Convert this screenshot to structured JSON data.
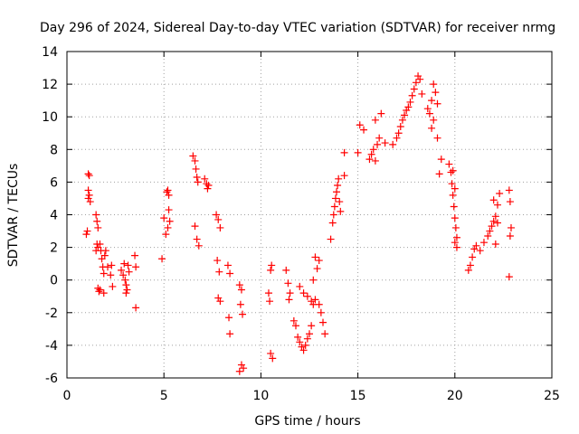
{
  "chart_data": {
    "type": "scatter",
    "title": "Day 296 of 2024, Sidereal Day-to-day VTEC variation (SDTVAR) for receiver nrmg",
    "xlabel": "GPS time / hours",
    "ylabel": "SDTVAR / TECUs",
    "xlim": [
      0,
      25
    ],
    "ylim": [
      -6,
      14
    ],
    "xticks": [
      0,
      5,
      10,
      15,
      20,
      25
    ],
    "yticks": [
      -6,
      -4,
      -2,
      0,
      2,
      4,
      6,
      8,
      10,
      12,
      14
    ],
    "grid": true,
    "marker": "plus",
    "color": "#ff0000",
    "series": [
      {
        "name": "SDTVAR",
        "x": [
          1.0,
          1.05,
          1.1,
          1.1,
          1.15,
          1.2,
          1.1,
          1.15,
          1.5,
          1.55,
          1.6,
          1.55,
          1.5,
          1.6,
          1.6,
          1.65,
          1.7,
          1.75,
          1.8,
          1.85,
          1.9,
          1.95,
          2.0,
          1.7,
          1.9,
          2.1,
          2.25,
          2.3,
          2.35,
          2.8,
          2.9,
          3.0,
          3.05,
          3.1,
          3.15,
          3.2,
          2.95,
          3.05,
          3.5,
          3.55,
          3.55,
          4.9,
          5.0,
          5.1,
          5.2,
          5.25,
          5.15,
          5.2,
          5.25,
          5.3,
          6.5,
          6.6,
          6.65,
          6.7,
          6.75,
          6.6,
          6.7,
          6.8,
          7.1,
          7.2,
          7.25,
          7.3,
          7.7,
          7.8,
          7.9,
          7.75,
          7.85,
          7.8,
          7.9,
          8.3,
          8.4,
          8.35,
          8.4,
          8.9,
          9.0,
          8.95,
          9.05,
          9.0,
          8.9,
          9.1,
          10.4,
          10.45,
          10.5,
          10.55,
          10.5,
          10.6,
          11.3,
          11.4,
          11.45,
          11.5,
          11.7,
          11.8,
          11.9,
          12.0,
          12.1,
          12.2,
          12.3,
          12.4,
          12.5,
          12.6,
          12.7,
          12.0,
          12.2,
          12.4,
          12.6,
          12.8,
          13.0,
          13.1,
          13.2,
          13.3,
          12.7,
          12.9,
          13.0,
          12.8,
          13.6,
          13.7,
          13.75,
          13.8,
          13.85,
          13.9,
          13.95,
          14.0,
          14.05,
          14.1,
          14.3,
          14.3,
          15.0,
          15.1,
          15.3,
          15.6,
          15.8,
          15.9,
          16.0,
          16.1,
          15.7,
          15.9,
          16.2,
          16.4,
          16.8,
          17.0,
          17.1,
          17.2,
          17.3,
          17.4,
          17.5,
          17.6,
          17.7,
          17.8,
          17.9,
          18.0,
          18.1,
          18.2,
          18.3,
          18.6,
          18.7,
          18.8,
          18.9,
          19.0,
          19.1,
          18.8,
          18.9,
          19.1,
          19.3,
          19.2,
          19.7,
          19.8,
          19.85,
          19.9,
          19.95,
          20.0,
          20.05,
          20.1,
          20.0,
          20.1,
          19.9,
          20.0,
          20.7,
          20.8,
          20.9,
          21.0,
          21.1,
          21.3,
          21.5,
          21.7,
          21.8,
          21.9,
          22.0,
          22.1,
          22.2,
          22.3,
          22.1,
          22.2,
          22.0,
          22.8,
          22.85,
          22.9,
          22.85,
          22.8
        ],
        "y": [
          2.8,
          3.0,
          5.0,
          5.5,
          5.2,
          4.8,
          6.5,
          6.4,
          4.0,
          3.6,
          3.2,
          2.2,
          1.8,
          2.0,
          -0.5,
          -0.7,
          2.2,
          1.8,
          1.3,
          0.8,
          0.4,
          1.5,
          1.8,
          -0.6,
          -0.8,
          0.8,
          0.3,
          0.9,
          -0.4,
          0.6,
          0.3,
          0.0,
          -0.3,
          -0.6,
          0.9,
          0.5,
          1.0,
          -0.8,
          1.5,
          0.8,
          -1.7,
          1.3,
          3.8,
          2.8,
          3.2,
          4.3,
          5.4,
          5.5,
          5.2,
          3.6,
          7.6,
          7.3,
          6.8,
          6.3,
          6.0,
          3.3,
          2.5,
          2.1,
          6.2,
          5.9,
          5.6,
          5.8,
          4.0,
          3.7,
          3.2,
          1.2,
          0.5,
          -1.1,
          -1.3,
          0.9,
          0.4,
          -2.3,
          -3.3,
          -0.3,
          -0.6,
          -1.5,
          -2.1,
          -5.2,
          -5.6,
          -5.4,
          -0.8,
          -1.3,
          0.6,
          0.9,
          -4.5,
          -4.8,
          0.6,
          -0.2,
          -1.2,
          -0.8,
          -2.5,
          -2.8,
          -3.5,
          -3.8,
          -4.1,
          -4.3,
          -4.0,
          -3.6,
          -3.3,
          -2.8,
          -1.5,
          -0.4,
          -0.8,
          -1.0,
          -1.3,
          -1.2,
          -1.5,
          -2.0,
          -2.6,
          -3.3,
          0.0,
          0.7,
          1.2,
          1.4,
          2.5,
          3.5,
          4.0,
          4.5,
          5.0,
          5.4,
          5.8,
          6.2,
          4.8,
          4.2,
          7.8,
          6.4,
          7.8,
          9.5,
          9.2,
          7.4,
          8.0,
          9.8,
          8.3,
          8.7,
          7.7,
          7.3,
          10.2,
          8.4,
          8.3,
          8.7,
          9.0,
          9.4,
          9.8,
          10.1,
          10.4,
          10.6,
          10.9,
          11.3,
          11.7,
          12.1,
          12.5,
          12.3,
          11.4,
          10.5,
          10.2,
          11.0,
          12.0,
          11.5,
          10.8,
          9.3,
          9.8,
          8.7,
          7.4,
          6.5,
          7.1,
          6.6,
          5.9,
          5.2,
          4.5,
          3.8,
          3.2,
          2.6,
          2.3,
          2.0,
          6.7,
          5.6,
          0.6,
          0.9,
          1.4,
          1.9,
          2.1,
          1.8,
          2.3,
          2.7,
          3.0,
          3.3,
          3.6,
          3.9,
          4.6,
          5.3,
          2.2,
          3.5,
          4.9,
          5.5,
          4.8,
          3.2,
          2.7,
          0.2
        ]
      }
    ]
  }
}
